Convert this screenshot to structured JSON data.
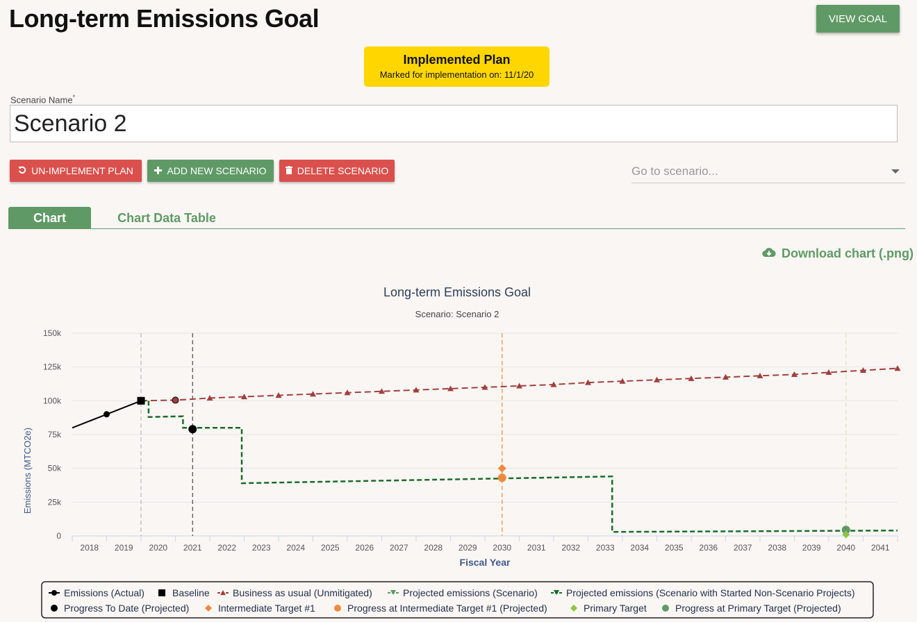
{
  "header": {
    "title": "Long-term Emissions Goal",
    "view_goal_label": "VIEW GOAL"
  },
  "status": {
    "title": "Implemented Plan",
    "subtitle": "Marked for implementation on: 11/1/20",
    "color": "#ffd600"
  },
  "scenario_field": {
    "label": "Scenario Name",
    "required_mark": "*",
    "value": "Scenario 2"
  },
  "actions": {
    "unimplement_label": "UN-IMPLEMENT PLAN",
    "add_label": "ADD NEW SCENARIO",
    "delete_label": "DELETE SCENARIO"
  },
  "goto": {
    "placeholder": "Go to scenario..."
  },
  "tabs": [
    {
      "label": "Chart",
      "active": true
    },
    {
      "label": "Chart Data Table",
      "active": false
    }
  ],
  "download_label": "Download chart (.png)",
  "icons": {
    "undo": "undo-icon",
    "plus": "plus-icon",
    "trash": "trash-icon",
    "cloud": "cloud-download-icon",
    "caret": "caret-down-icon"
  },
  "colors": {
    "accent_green": "#5f9a66",
    "danger_red": "#d9504c",
    "bau": "#a0403f",
    "projected": "#1a6b2b",
    "intermediate": "#ef8a3c",
    "primary": "#8cc63f"
  },
  "chart_data": {
    "type": "line",
    "title": "Long-term Emissions Goal",
    "subtitle": "Scenario: Scenario 2",
    "xlabel": "Fiscal Year",
    "ylabel": "Emissions (MTCO2e)",
    "ylim": [
      0,
      150000
    ],
    "yticks": [
      "0",
      "25k",
      "50k",
      "75k",
      "100k",
      "125k",
      "150k"
    ],
    "xticks": [
      "2018",
      "2019",
      "2020",
      "2021",
      "2022",
      "2023",
      "2024",
      "2025",
      "2026",
      "2027",
      "2028",
      "2029",
      "2030",
      "2031",
      "2032",
      "2033",
      "2034",
      "2035",
      "2036",
      "2037",
      "2038",
      "2039",
      "2040",
      "2041"
    ],
    "vertical_lines": [
      2019.5,
      2021,
      2030,
      2040
    ],
    "series": [
      {
        "name": "Emissions (Actual)",
        "points": [
          [
            2017.5,
            80000
          ],
          [
            2018.5,
            90000
          ],
          [
            2019.5,
            100000
          ]
        ]
      },
      {
        "name": "Baseline",
        "points": [
          [
            2019.5,
            100000
          ]
        ]
      },
      {
        "name": "Business as usual (Unmitigated)",
        "points": [
          [
            2019.5,
            100000
          ],
          [
            2020.5,
            100500
          ],
          [
            2021.5,
            102000
          ],
          [
            2022.5,
            103000
          ],
          [
            2023.5,
            104000
          ],
          [
            2024.5,
            105000
          ],
          [
            2025.5,
            106000
          ],
          [
            2026.5,
            107000
          ],
          [
            2027.5,
            108000
          ],
          [
            2028.5,
            109000
          ],
          [
            2029.5,
            110000
          ],
          [
            2030.5,
            111000
          ],
          [
            2031.5,
            112000
          ],
          [
            2032.5,
            113500
          ],
          [
            2033.5,
            114500
          ],
          [
            2034.5,
            115500
          ],
          [
            2035.5,
            116500
          ],
          [
            2036.5,
            117500
          ],
          [
            2037.5,
            118500
          ],
          [
            2038.5,
            119500
          ],
          [
            2039.5,
            121000
          ],
          [
            2040.5,
            122500
          ],
          [
            2041.5,
            124000
          ]
        ]
      },
      {
        "name": "Projected emissions (Scenario)",
        "points": []
      },
      {
        "name": "Projected emissions (Scenario with Started Non-Scenario Projects)",
        "points": [
          [
            2019.5,
            100000
          ],
          [
            2019.72,
            100000
          ],
          [
            2019.72,
            88000
          ],
          [
            2020.72,
            88500
          ],
          [
            2020.72,
            80000
          ],
          [
            2022.43,
            80000
          ],
          [
            2022.43,
            39000
          ],
          [
            2033.2,
            44000
          ],
          [
            2033.2,
            3000
          ],
          [
            2041.5,
            4000
          ]
        ]
      },
      {
        "name": "Progress To Date (Projected)",
        "points": [
          [
            2021,
            79000
          ]
        ]
      },
      {
        "name": "Intermediate Target #1",
        "points": [
          [
            2030,
            50000
          ]
        ]
      },
      {
        "name": "Progress at Intermediate Target #1 (Projected)",
        "points": [
          [
            2030,
            43000
          ]
        ]
      },
      {
        "name": "Primary Target",
        "points": [
          [
            2040,
            1000
          ]
        ]
      },
      {
        "name": "Progress at Primary Target (Projected)",
        "points": [
          [
            2040,
            4500
          ]
        ]
      }
    ],
    "legend_position": "bottom"
  }
}
